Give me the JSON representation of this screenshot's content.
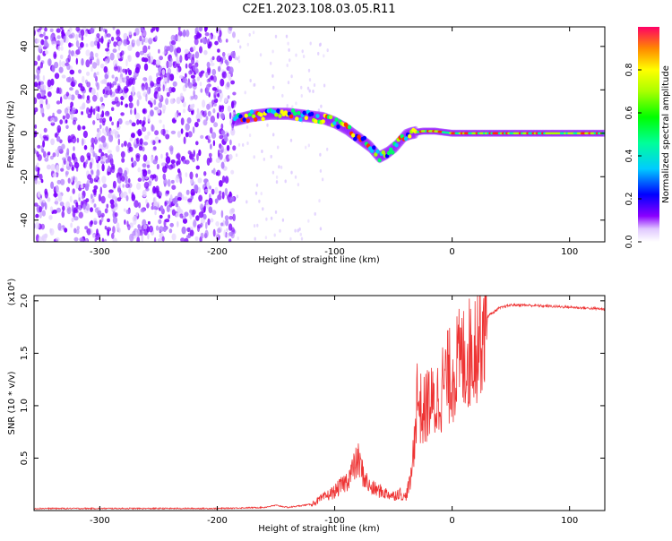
{
  "title": "C2E1.2023.108.03.05.R11",
  "colors": {
    "snr_line": "#ee3333",
    "axis": "#000000",
    "scatter_noise": "#7b00ff"
  },
  "chart_data": [
    {
      "type": "heatmap",
      "xlabel": "Height of straight line (km)",
      "ylabel": "Frequency (Hz)",
      "xlim": [
        -356,
        130
      ],
      "ylim": [
        -50,
        49
      ],
      "xticks": [
        -300,
        -200,
        -100,
        0,
        100
      ],
      "yticks": [
        -40,
        -20,
        0,
        20,
        40
      ],
      "colorbar": {
        "label": "Normalized spectral amplitude",
        "range": [
          0,
          1
        ],
        "ticks": [
          0.0,
          0.2,
          0.4,
          0.6,
          0.8
        ]
      },
      "noise_region_x": [
        -356,
        -185
      ],
      "peak_track": {
        "x": [
          -185,
          -170,
          -155,
          -140,
          -125,
          -110,
          -100,
          -90,
          -80,
          -70,
          -62,
          -55,
          -48,
          -40,
          -35,
          -25,
          -15,
          0,
          30,
          60,
          90,
          130
        ],
        "y": [
          6,
          8,
          9,
          9,
          8,
          7,
          5,
          2,
          -2,
          -6,
          -11,
          -9,
          -6,
          -1,
          0,
          1,
          1,
          0,
          0,
          0,
          0,
          0
        ]
      }
    },
    {
      "type": "line",
      "xlabel": "Height of straight line (km)",
      "ylabel": "SNR (10 * v/v)",
      "y_multiplier": "(x10⁴)",
      "xlim": [
        -356,
        130
      ],
      "ylim": [
        0,
        2.05
      ],
      "xticks": [
        -300,
        -200,
        -100,
        0,
        100
      ],
      "yticks": [
        0.5,
        1.0,
        1.5,
        2.0
      ],
      "series": [
        {
          "x": [
            -356,
            -200,
            -160,
            -150,
            -145,
            -140,
            -120,
            -110,
            -100,
            -90,
            -85,
            -80,
            -75,
            -70,
            -60,
            -50,
            -45,
            -40,
            -35,
            -32,
            -30,
            -25,
            -20,
            -15,
            -10,
            -5,
            0,
            5,
            10,
            15,
            20,
            25,
            30,
            40,
            50,
            60,
            80,
            100,
            130
          ],
          "y": [
            0.02,
            0.02,
            0.03,
            0.05,
            0.04,
            0.03,
            0.06,
            0.12,
            0.18,
            0.28,
            0.38,
            0.48,
            0.32,
            0.22,
            0.18,
            0.14,
            0.17,
            0.12,
            0.3,
            0.7,
            1.1,
            0.9,
            1.05,
            0.98,
            1.15,
            1.25,
            1.3,
            1.4,
            1.45,
            1.5,
            1.6,
            1.75,
            1.85,
            1.93,
            1.96,
            1.96,
            1.95,
            1.94,
            1.92
          ]
        }
      ]
    }
  ]
}
